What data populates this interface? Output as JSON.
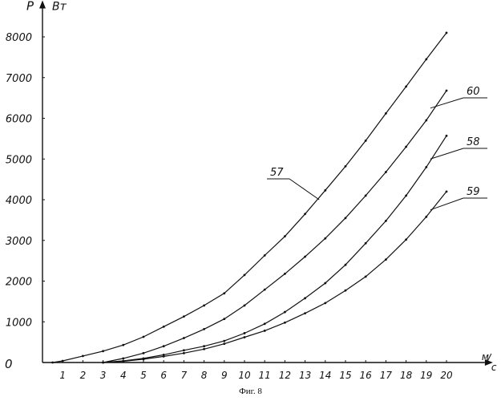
{
  "chart_data": {
    "type": "line",
    "y_axis_label": "P",
    "y_unit": "Вт",
    "x_unit_num": "м",
    "x_unit_den": "с",
    "origin_label": "0",
    "x_ticks": [
      1,
      2,
      3,
      4,
      5,
      6,
      7,
      8,
      9,
      10,
      11,
      12,
      13,
      14,
      15,
      16,
      17,
      18,
      19,
      20
    ],
    "y_ticks": [
      1000,
      2000,
      3000,
      4000,
      5000,
      6000,
      7000,
      8000
    ],
    "xlim": [
      0,
      21.9
    ],
    "ylim": [
      0,
      8700
    ],
    "grid": false,
    "series": [
      {
        "name": "57",
        "x": [
          0.5,
          1,
          2,
          3,
          4,
          5,
          6,
          7,
          8,
          9,
          10,
          11,
          12,
          13,
          14,
          15,
          16,
          17,
          18,
          19,
          20
        ],
        "y": [
          0,
          40,
          160,
          280,
          430,
          630,
          880,
          1130,
          1400,
          1700,
          2150,
          2630,
          3100,
          3650,
          4230,
          4820,
          5450,
          6120,
          6780,
          7450,
          8100
        ]
      },
      {
        "name": "60",
        "x": [
          3,
          4,
          5,
          6,
          7,
          8,
          9,
          10,
          11,
          12,
          13,
          14,
          15,
          16,
          17,
          18,
          19,
          20
        ],
        "y": [
          0,
          100,
          230,
          400,
          600,
          820,
          1070,
          1400,
          1790,
          2180,
          2600,
          3050,
          3550,
          4100,
          4680,
          5300,
          5950,
          6680
        ]
      },
      {
        "name": "58",
        "x": [
          3,
          4,
          5,
          6,
          7,
          8,
          9,
          10,
          11,
          12,
          13,
          14,
          15,
          16,
          17,
          18,
          19,
          20
        ],
        "y": [
          0,
          40,
          100,
          190,
          300,
          400,
          530,
          720,
          950,
          1240,
          1580,
          1950,
          2400,
          2930,
          3480,
          4100,
          4800,
          5570
        ]
      },
      {
        "name": "59",
        "x": [
          3,
          4,
          5,
          6,
          7,
          8,
          9,
          10,
          11,
          12,
          13,
          14,
          15,
          16,
          17,
          18,
          19,
          20
        ],
        "y": [
          0,
          30,
          80,
          150,
          230,
          330,
          460,
          620,
          780,
          980,
          1210,
          1460,
          1770,
          2110,
          2530,
          3020,
          3580,
          4200
        ]
      }
    ]
  },
  "caption": "Фиг. 8"
}
